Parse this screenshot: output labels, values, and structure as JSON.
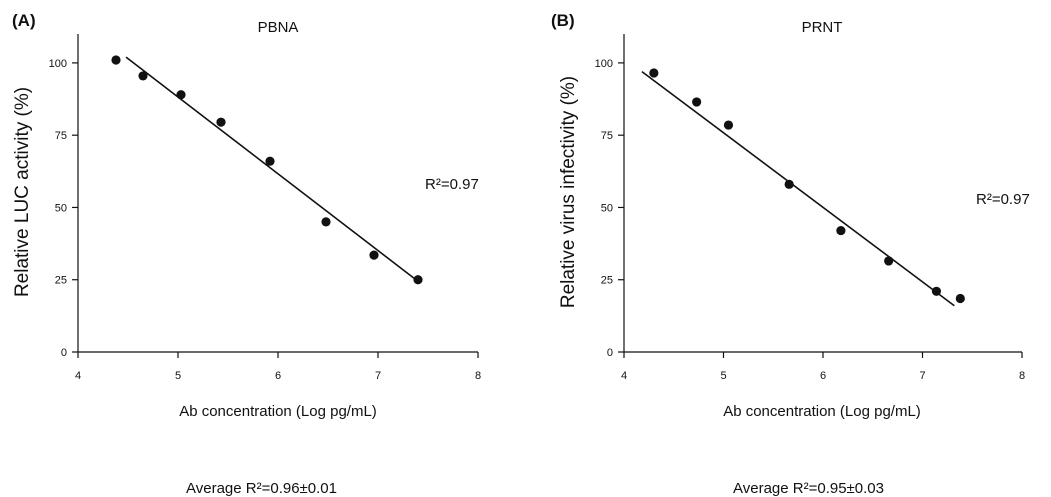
{
  "chart_data": [
    {
      "type": "scatter",
      "panel_label": "(A)",
      "title": "PBNA",
      "xlabel": "Ab concentration (Log pg/mL)",
      "ylabel": "Relative LUC activity (%)",
      "xlim": [
        4,
        8
      ],
      "ylim": [
        0,
        110
      ],
      "x_ticks": [
        "4",
        "5",
        "6",
        "7",
        "8"
      ],
      "y_ticks": [
        "0",
        "25",
        "50",
        "75",
        "100"
      ],
      "series": [
        {
          "points": [
            {
              "x": 4.38,
              "y": 101
            },
            {
              "x": 4.65,
              "y": 95.5
            },
            {
              "x": 5.03,
              "y": 89
            },
            {
              "x": 5.43,
              "y": 79.5
            },
            {
              "x": 5.92,
              "y": 66
            },
            {
              "x": 6.48,
              "y": 45
            },
            {
              "x": 6.96,
              "y": 33.5
            },
            {
              "x": 7.4,
              "y": 25
            }
          ]
        }
      ],
      "fit_line": {
        "x": [
          4.48,
          7.38
        ],
        "y": [
          102,
          25
        ]
      },
      "annotation": "R²=0.97",
      "footnote": "Average R²=0.96±0.01"
    },
    {
      "type": "scatter",
      "panel_label": "(B)",
      "title": "PRNT",
      "xlabel": "Ab concentration (Log pg/mL)",
      "ylabel": "Relative virus infectivity (%)",
      "xlim": [
        4,
        8
      ],
      "ylim": [
        0,
        110
      ],
      "x_ticks": [
        "4",
        "5",
        "6",
        "7",
        "8"
      ],
      "y_ticks": [
        "0",
        "25",
        "50",
        "75",
        "100"
      ],
      "series": [
        {
          "points": [
            {
              "x": 4.3,
              "y": 96.5
            },
            {
              "x": 4.73,
              "y": 86.5
            },
            {
              "x": 5.05,
              "y": 78.5
            },
            {
              "x": 5.66,
              "y": 58
            },
            {
              "x": 6.18,
              "y": 42
            },
            {
              "x": 6.66,
              "y": 31.5
            },
            {
              "x": 7.14,
              "y": 21
            },
            {
              "x": 7.38,
              "y": 18.5
            }
          ]
        }
      ],
      "fit_line": {
        "x": [
          4.18,
          7.32
        ],
        "y": [
          97,
          16
        ]
      },
      "annotation": "R²=0.97",
      "footnote": "Average R²=0.95±0.03"
    }
  ]
}
